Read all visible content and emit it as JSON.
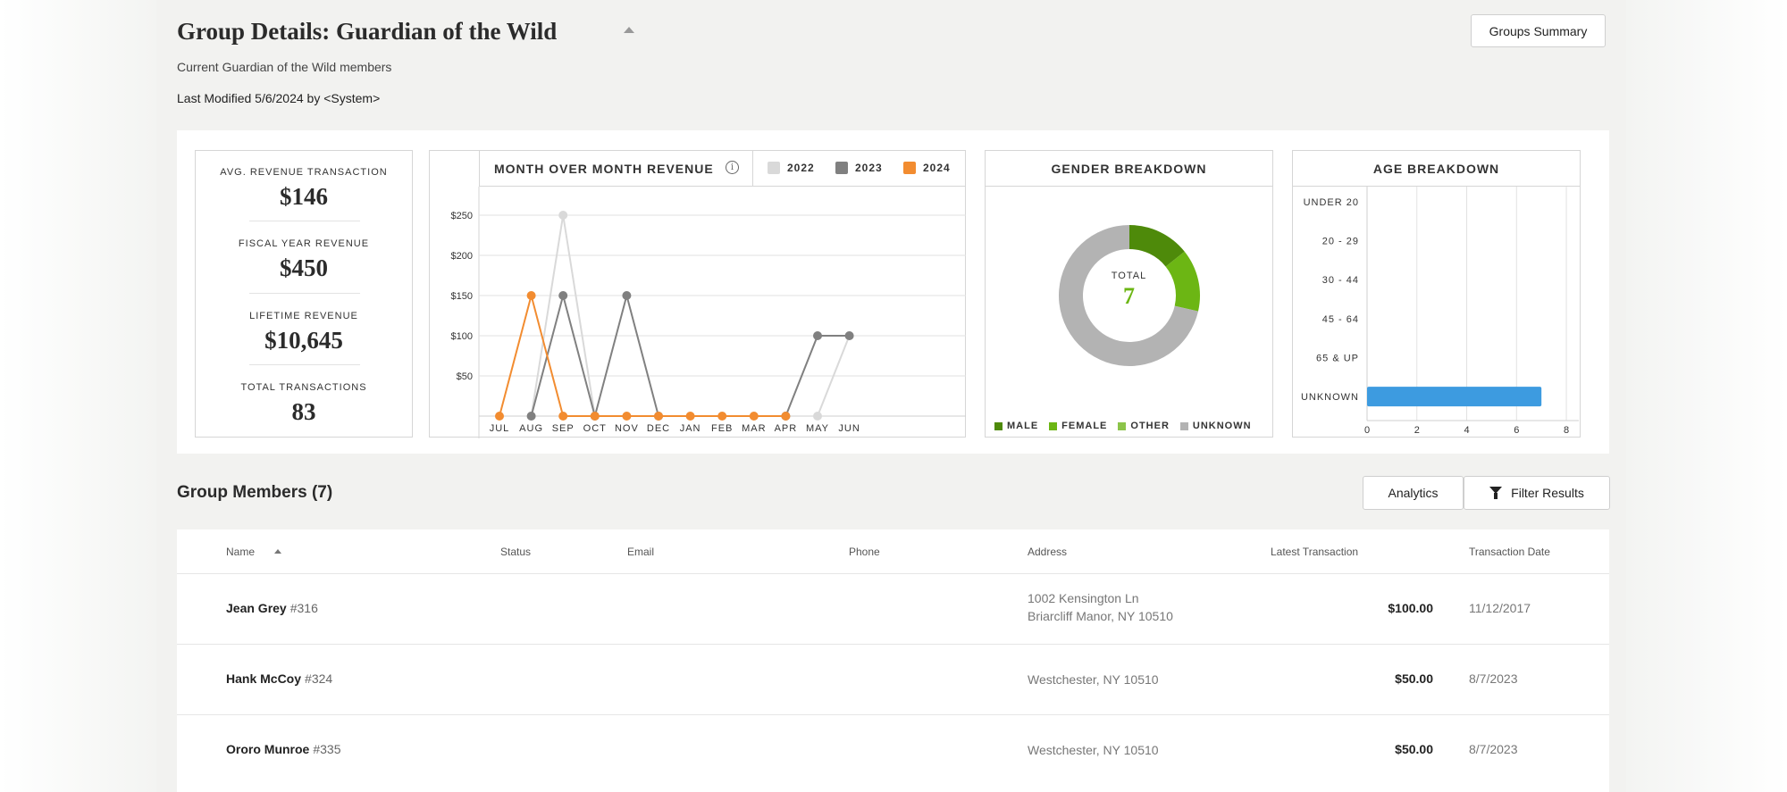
{
  "header": {
    "title": "Group Details: Guardian of the Wild",
    "subtitle": "Current Guardian of the Wild members",
    "last_modified": "Last Modified 5/6/2024 by <System>",
    "groups_summary_label": "Groups Summary"
  },
  "kpis": [
    {
      "label": "AVG. REVENUE TRANSACTION",
      "value": "$146"
    },
    {
      "label": "FISCAL YEAR REVENUE",
      "value": "$450"
    },
    {
      "label": "LIFETIME REVENUE",
      "value": "$10,645"
    },
    {
      "label": "TOTAL TRANSACTIONS",
      "value": "83"
    }
  ],
  "revenue_card": {
    "title": "MONTH OVER MONTH REVENUE",
    "info_icon": "info-icon",
    "legend": [
      {
        "label": "2022",
        "color": "#d9d9d9"
      },
      {
        "label": "2023",
        "color": "#808080"
      },
      {
        "label": "2024",
        "color": "#f28c30"
      }
    ]
  },
  "gender_card": {
    "title": "GENDER BREAKDOWN",
    "total_label": "TOTAL",
    "total_value": "7",
    "legend": [
      {
        "label": "MALE",
        "color": "#4e8a0a"
      },
      {
        "label": "FEMALE",
        "color": "#6cb614"
      },
      {
        "label": "OTHER",
        "color": "#8cc44a"
      },
      {
        "label": "UNKNOWN",
        "color": "#b3b3b3"
      }
    ]
  },
  "age_card": {
    "title": "AGE BREAKDOWN"
  },
  "chart_data": [
    {
      "type": "line",
      "title": "MONTH OVER MONTH REVENUE",
      "categories": [
        "JUL",
        "AUG",
        "SEP",
        "OCT",
        "NOV",
        "DEC",
        "JAN",
        "FEB",
        "MAR",
        "APR",
        "MAY",
        "JUN"
      ],
      "y_ticks": [
        "$50",
        "$100",
        "$150",
        "$200",
        "$250"
      ],
      "ylim": [
        0,
        250
      ],
      "grid": true,
      "legend_position": "top-right",
      "series": [
        {
          "name": "2022",
          "color": "#d9d9d9",
          "values": [
            null,
            0,
            250,
            0,
            null,
            null,
            null,
            null,
            null,
            null,
            0,
            100
          ]
        },
        {
          "name": "2023",
          "color": "#808080",
          "values": [
            null,
            0,
            150,
            0,
            150,
            0,
            null,
            null,
            null,
            0,
            100,
            100
          ]
        },
        {
          "name": "2024",
          "color": "#f28c30",
          "values": [
            0,
            150,
            0,
            0,
            0,
            0,
            0,
            0,
            0,
            0,
            null,
            null
          ]
        }
      ]
    },
    {
      "type": "pie",
      "title": "GENDER BREAKDOWN",
      "donut": true,
      "categories": [
        "MALE",
        "FEMALE",
        "OTHER",
        "UNKNOWN"
      ],
      "values": [
        1,
        1,
        0,
        5
      ],
      "colors": [
        "#4e8a0a",
        "#6cb614",
        "#8cc44a",
        "#b3b3b3"
      ]
    },
    {
      "type": "bar",
      "orientation": "horizontal",
      "title": "AGE BREAKDOWN",
      "categories": [
        "UNDER 20",
        "20 - 29",
        "30 - 44",
        "45 - 64",
        "65 & UP",
        "UNKNOWN"
      ],
      "values": [
        0,
        0,
        0,
        0,
        0,
        7
      ],
      "x_ticks": [
        "0",
        "2",
        "4",
        "6",
        "8"
      ],
      "xlim": [
        0,
        8.5
      ],
      "grid": true,
      "color": "#3d9be0"
    }
  ],
  "members": {
    "title": "Group Members (7)",
    "analytics_label": "Analytics",
    "filter_label": "Filter Results",
    "columns": {
      "name": "Name",
      "status": "Status",
      "email": "Email",
      "phone": "Phone",
      "address": "Address",
      "latest": "Latest Transaction",
      "date": "Transaction Date"
    },
    "rows": [
      {
        "name": "Jean Grey",
        "id": "#316",
        "address1": "1002 Kensington Ln",
        "address2": "Briarcliff Manor, NY 10510",
        "amount": "$100.00",
        "date": "11/12/2017"
      },
      {
        "name": "Hank McCoy",
        "id": "#324",
        "address1": "Westchester, NY 10510",
        "address2": "",
        "amount": "$50.00",
        "date": "8/7/2023"
      },
      {
        "name": "Ororo Munroe",
        "id": "#335",
        "address1": "Westchester, NY 10510",
        "address2": "",
        "amount": "$50.00",
        "date": "8/7/2023"
      }
    ]
  }
}
